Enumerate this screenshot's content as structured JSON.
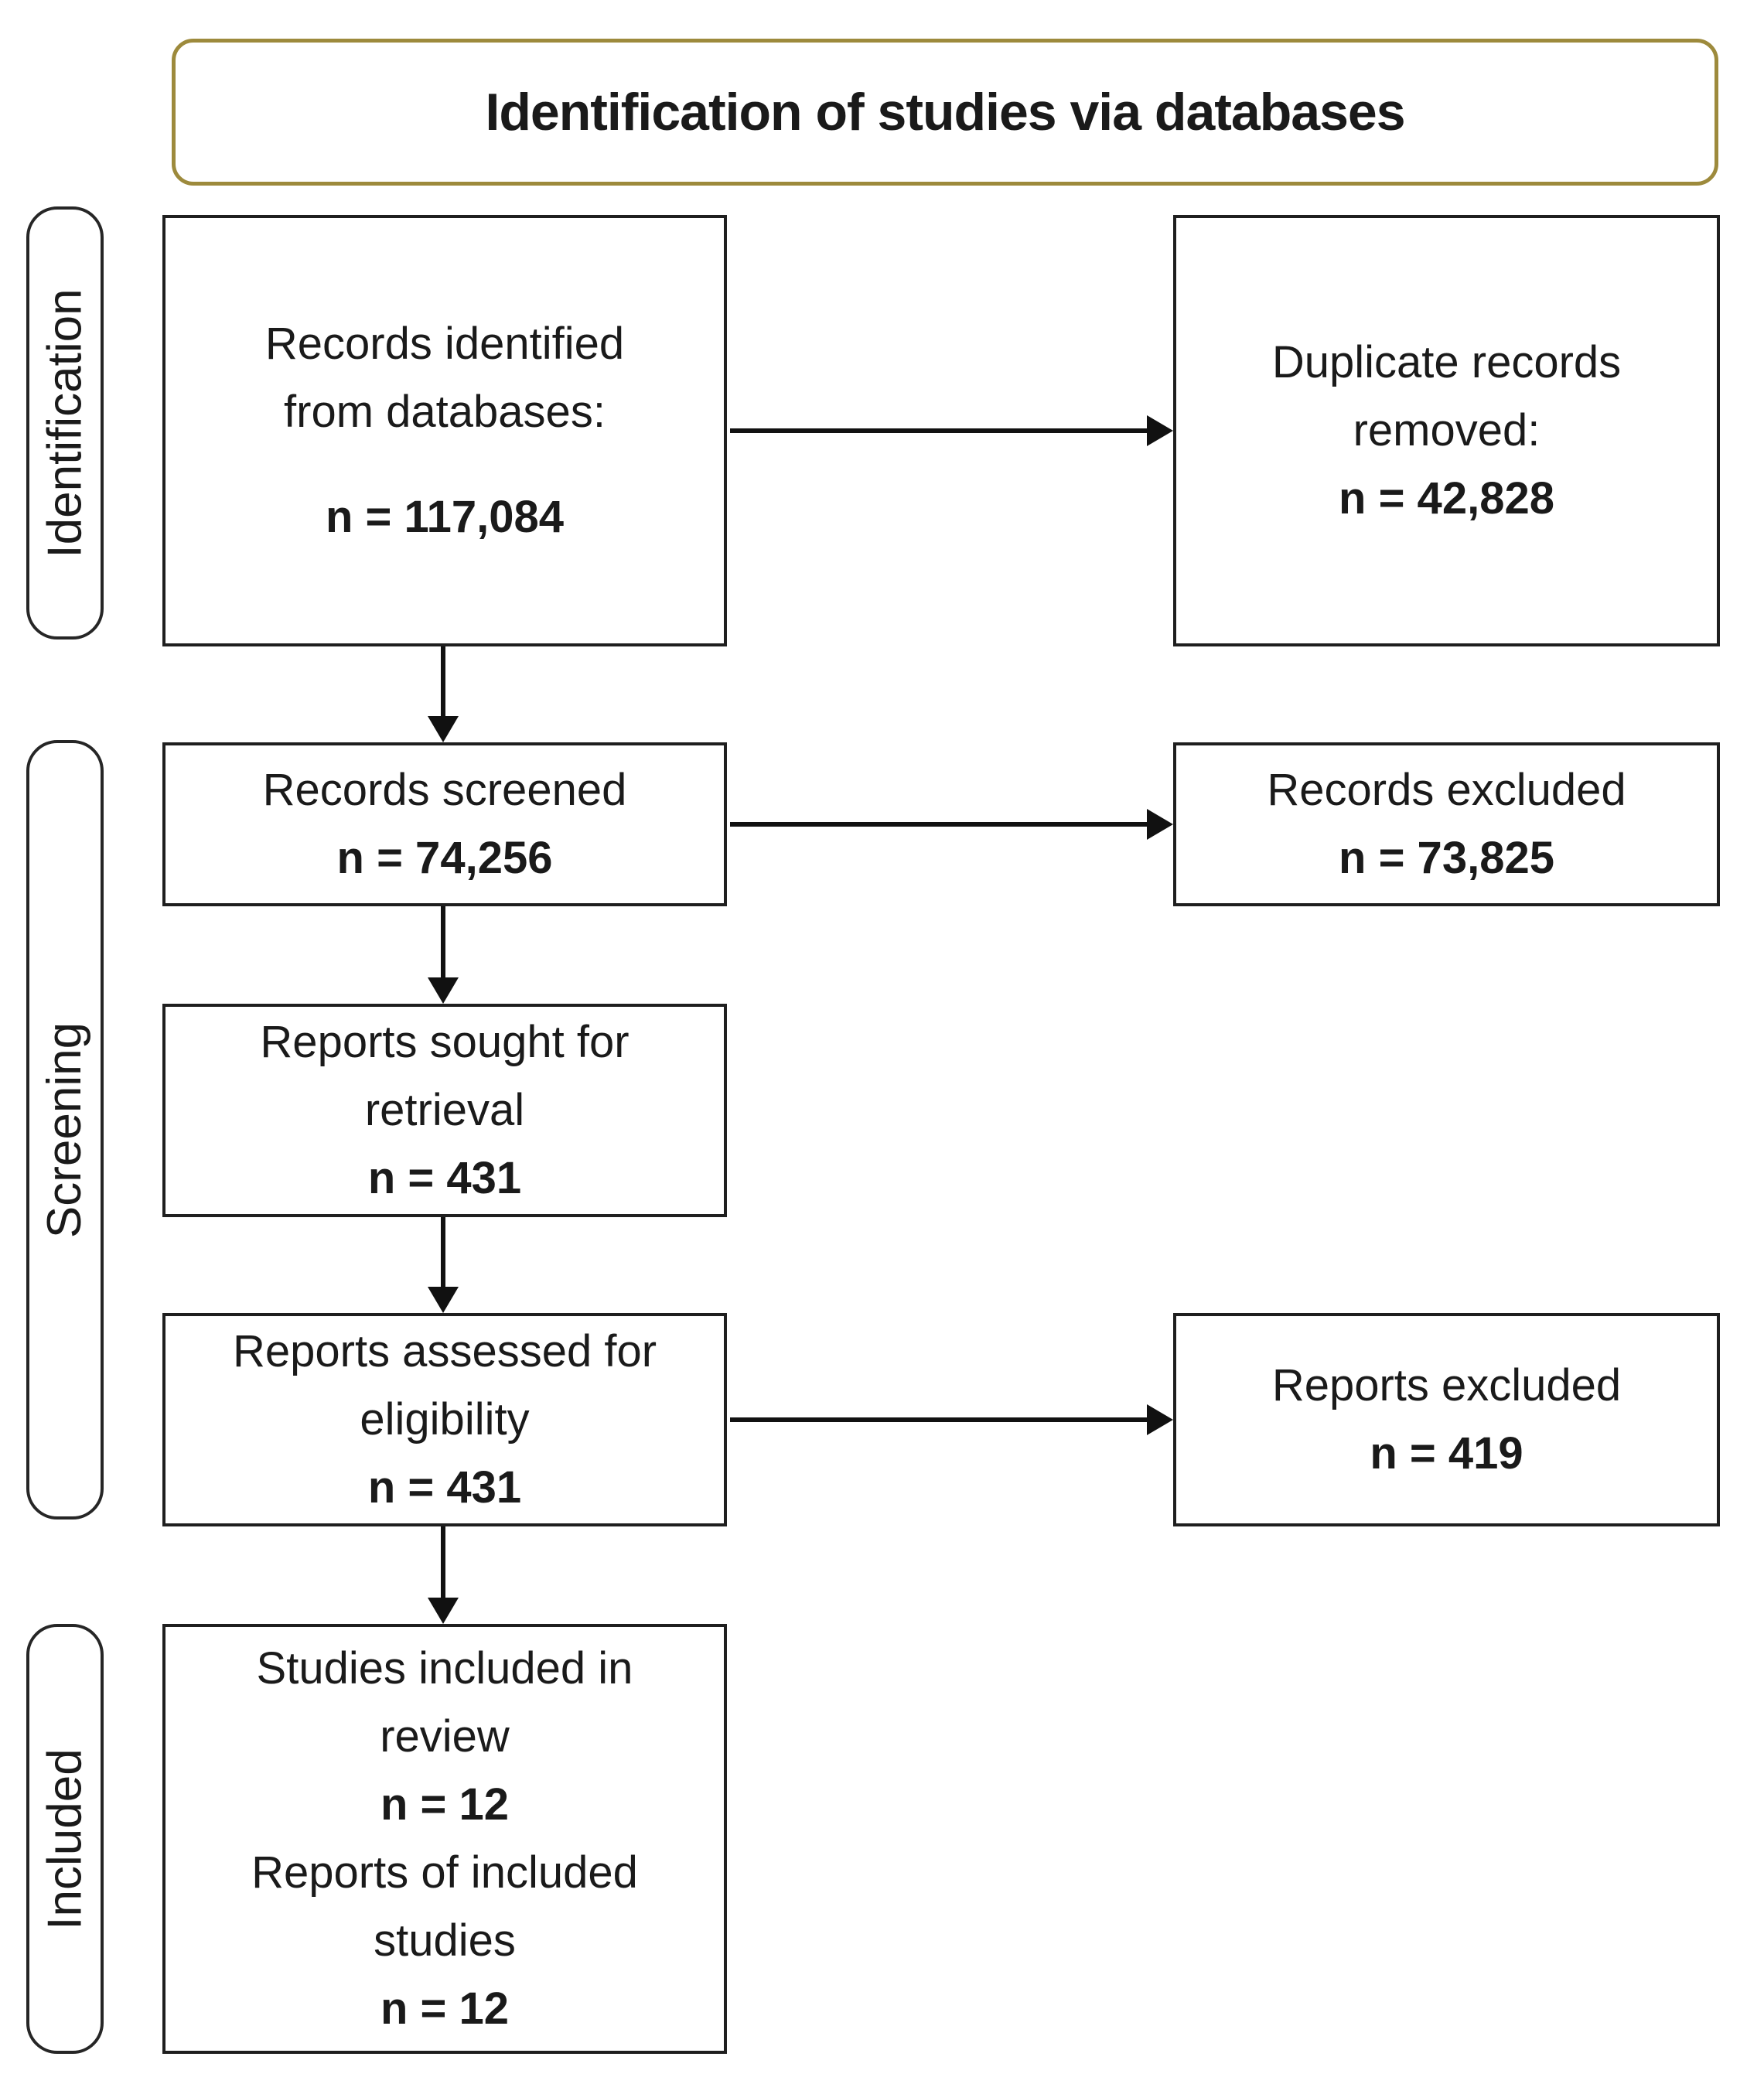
{
  "title": "Identification of studies via databases",
  "colors": {
    "title_border": "#9d8a3c",
    "box_border": "#1f1f1f",
    "arrow": "#111111",
    "text": "#1a1a1a",
    "background": "#ffffff"
  },
  "stages": {
    "identification": "Identification",
    "screening": "Screening",
    "included": "Included"
  },
  "boxes": {
    "records_identified": {
      "lines": [
        "Records identified",
        "from databases:"
      ],
      "count": "n = 117,084"
    },
    "duplicates_removed": {
      "lines": [
        "Duplicate records",
        "removed:"
      ],
      "count": "n = 42,828"
    },
    "records_screened": {
      "lines": [
        "Records screened"
      ],
      "count": "n = 74,256"
    },
    "records_excluded": {
      "lines": [
        "Records excluded"
      ],
      "count": "n = 73,825"
    },
    "reports_sought": {
      "lines": [
        "Reports sought for",
        "retrieval"
      ],
      "count": "n = 431"
    },
    "reports_assessed": {
      "lines": [
        "Reports assessed for",
        "eligibility"
      ],
      "count": "n = 431"
    },
    "reports_excluded": {
      "lines": [
        "Reports excluded"
      ],
      "count": "n = 419"
    },
    "studies_included": {
      "lines_review": [
        "Studies included in",
        "review"
      ],
      "count_review": "n = 12",
      "lines_reports": [
        "Reports of included",
        "studies"
      ],
      "count_reports": "n = 12"
    }
  }
}
